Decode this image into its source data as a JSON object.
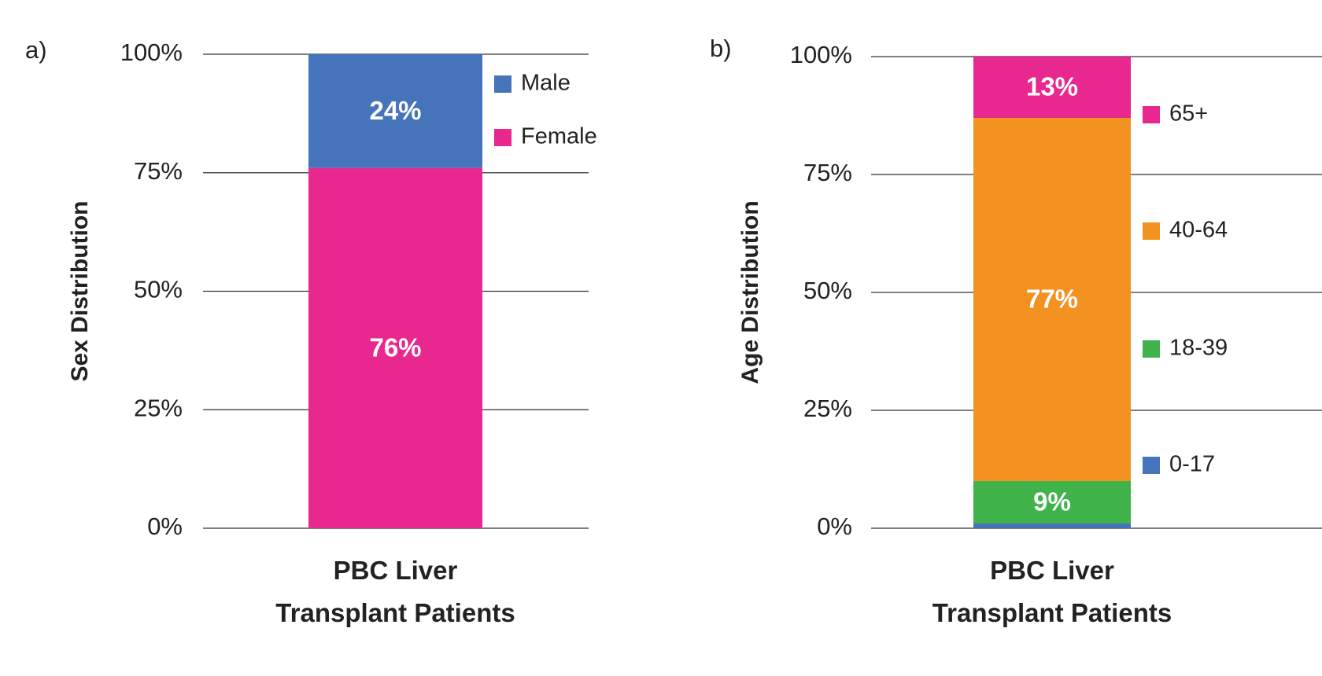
{
  "chart_data": [
    {
      "type": "stacked_bar",
      "panel_label": "a)",
      "ylabel": "Sex Distribution",
      "categories": [
        "PBC Liver\nTransplant Patients"
      ],
      "series": [
        {
          "name": "Female",
          "color": "#e8288f",
          "values": [
            76
          ],
          "value_labels": [
            "76%"
          ]
        },
        {
          "name": "Male",
          "color": "#4674bb",
          "values": [
            24
          ],
          "value_labels": [
            "24%"
          ]
        }
      ],
      "ylim": [
        0,
        100
      ],
      "yticks": [
        {
          "value": 0,
          "label": "0%"
        },
        {
          "value": 25,
          "label": "25%"
        },
        {
          "value": 50,
          "label": "50%"
        },
        {
          "value": 75,
          "label": "75%"
        },
        {
          "value": 100,
          "label": "100%"
        }
      ],
      "grid": true
    },
    {
      "type": "stacked_bar",
      "panel_label": "b)",
      "ylabel": "Age Distribution",
      "categories": [
        "PBC Liver\nTransplant Patients"
      ],
      "series": [
        {
          "name": "0-17",
          "color": "#4674bb",
          "values": [
            1
          ],
          "value_labels": [
            null
          ]
        },
        {
          "name": "18-39",
          "color": "#3fb34a",
          "values": [
            9
          ],
          "value_labels": [
            "9%"
          ]
        },
        {
          "name": "40-64",
          "color": "#f39121",
          "values": [
            77
          ],
          "value_labels": [
            "77%"
          ]
        },
        {
          "name": "65+",
          "color": "#e8288f",
          "values": [
            13
          ],
          "value_labels": [
            "13%"
          ]
        }
      ],
      "ylim": [
        0,
        100
      ],
      "yticks": [
        {
          "value": 0,
          "label": "0%"
        },
        {
          "value": 25,
          "label": "25%"
        },
        {
          "value": 50,
          "label": "50%"
        },
        {
          "value": 75,
          "label": "75%"
        },
        {
          "value": 100,
          "label": "100%"
        }
      ],
      "grid": true
    }
  ]
}
